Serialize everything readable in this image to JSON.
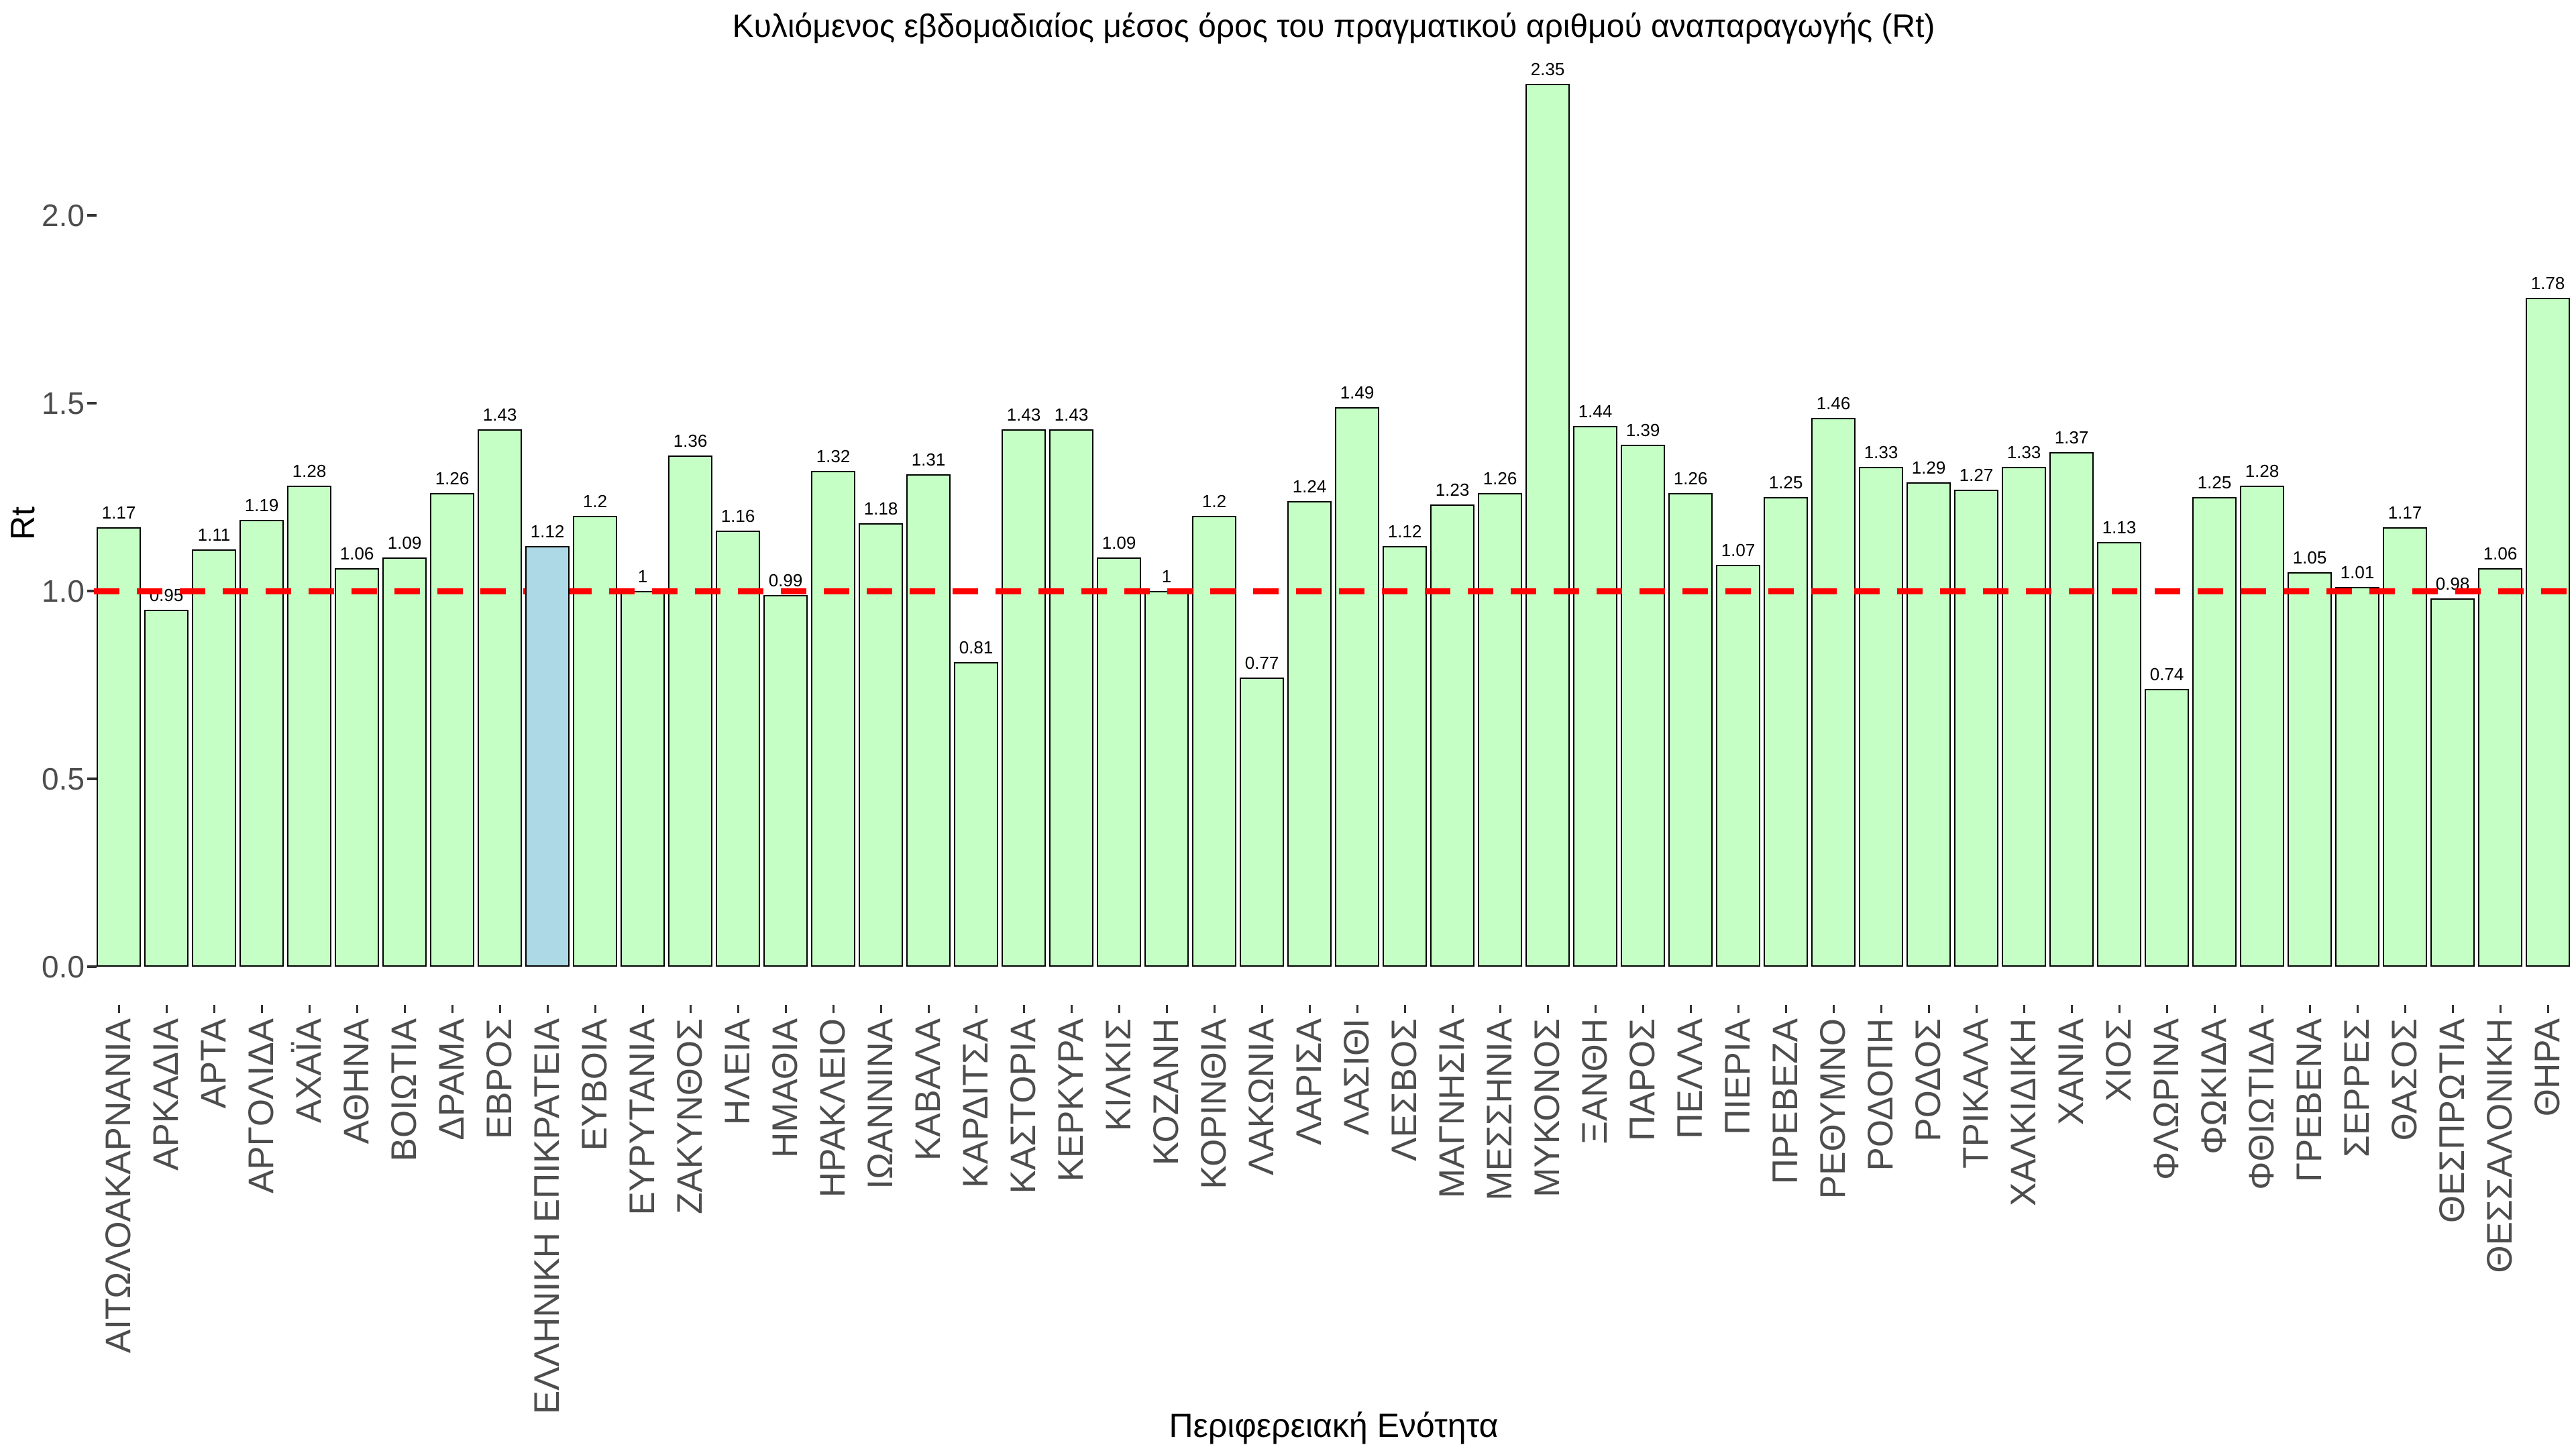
{
  "chart_data": {
    "type": "bar",
    "title": "Κυλιόμενος εβδομαδιαίος μέσος όρος του πραγματικού αριθμού αναπαραγωγής (Rt)",
    "xlabel": "Περιφερειακή Ενότητα",
    "ylabel": "Rt",
    "ylim": [
      0,
      2.4
    ],
    "yticks": [
      0.0,
      0.5,
      1.0,
      1.5,
      2.0
    ],
    "ytick_labels": [
      "0.0",
      "0.5",
      "1.0",
      "1.5",
      "2.0"
    ],
    "grid": false,
    "legend": false,
    "reference_line": {
      "value": 1.0,
      "color": "#FF0000",
      "style": "dashed"
    },
    "bar_style": {
      "fill": "#C6FFC6",
      "stroke": "#000000"
    },
    "highlight": {
      "category": "ΕΛΛΗΝΙΚΗ ΕΠΙΚΡΑΤΕΙΑ",
      "fill": "#ADD8E6"
    },
    "categories": [
      "ΑΙΤΩΛΟΑΚΑΡΝΑΝΙΑ",
      "ΑΡΚΑΔΙΑ",
      "ΑΡΤΑ",
      "ΑΡΓΟΛΙΔΑ",
      "ΑΧΑΪΑ",
      "ΑΘΗΝΑ",
      "ΒΟΙΩΤΙΑ",
      "ΔΡΑΜΑ",
      "ΕΒΡΟΣ",
      "ΕΛΛΗΝΙΚΗ ΕΠΙΚΡΑΤΕΙΑ",
      "ΕΥΒΟΙΑ",
      "ΕΥΡΥΤΑΝΙΑ",
      "ΖΑΚΥΝΘΟΣ",
      "ΗΛΕΙΑ",
      "ΗΜΑΘΙΑ",
      "ΗΡΑΚΛΕΙΟ",
      "ΙΩΑΝΝΙΝΑ",
      "ΚΑΒΑΛΑ",
      "ΚΑΡΔΙΤΣΑ",
      "ΚΑΣΤΟΡΙΑ",
      "ΚΕΡΚΥΡΑ",
      "ΚΙΛΚΙΣ",
      "ΚΟΖΑΝΗ",
      "ΚΟΡΙΝΘΙΑ",
      "ΛΑΚΩΝΙΑ",
      "ΛΑΡΙΣΑ",
      "ΛΑΣΙΘΙ",
      "ΛΕΣΒΟΣ",
      "ΜΑΓΝΗΣΙΑ",
      "ΜΕΣΣΗΝΙΑ",
      "ΜΥΚΟΝΟΣ",
      "ΞΑΝΘΗ",
      "ΠΑΡΟΣ",
      "ΠΕΛΛΑ",
      "ΠΙΕΡΙΑ",
      "ΠΡΕΒΕΖΑ",
      "ΡΕΘΥΜΝΟ",
      "ΡΟΔΟΠΗ",
      "ΡΟΔΟΣ",
      "ΤΡΙΚΑΛΑ",
      "ΧΑΛΚΙΔΙΚΗ",
      "ΧΑΝΙΑ",
      "ΧΙΟΣ",
      "ΦΛΩΡΙΝΑ",
      "ΦΩΚΙΔΑ",
      "ΦΘΙΩΤΙΔΑ",
      "ΓΡΕΒΕΝΑ",
      "ΣΕΡΡΕΣ",
      "ΘΑΣΟΣ",
      "ΘΕΣΠΡΩΤΙΑ",
      "ΘΕΣΣΑΛΟΝΙΚΗ",
      "ΘΗΡΑ"
    ],
    "values": [
      1.17,
      0.95,
      1.11,
      1.19,
      1.28,
      1.06,
      1.09,
      1.26,
      1.43,
      1.12,
      1.2,
      1,
      1.36,
      1.16,
      0.99,
      1.32,
      1.18,
      1.31,
      0.81,
      1.43,
      1.43,
      1.09,
      1,
      1.2,
      0.77,
      1.24,
      1.49,
      1.12,
      1.23,
      1.26,
      2.35,
      1.44,
      1.39,
      1.26,
      1.07,
      1.25,
      1.46,
      1.33,
      1.29,
      1.27,
      1.33,
      1.37,
      1.13,
      0.74,
      1.25,
      1.28,
      1.05,
      1.01,
      1.17,
      0.98,
      1.06,
      1.78
    ],
    "value_labels": [
      "1.17",
      "0.95",
      "1.11",
      "1.19",
      "1.28",
      "1.06",
      "1.09",
      "1.26",
      "1.43",
      "1.12",
      "1.2",
      "1",
      "1.36",
      "1.16",
      "0.99",
      "1.32",
      "1.18",
      "1.31",
      "0.81",
      "1.43",
      "1.43",
      "1.09",
      "1",
      "1.2",
      "0.77",
      "1.24",
      "1.49",
      "1.12",
      "1.23",
      "1.26",
      "2.35",
      "1.44",
      "1.39",
      "1.26",
      "1.07",
      "1.25",
      "1.46",
      "1.33",
      "1.29",
      "1.27",
      "1.33",
      "1.37",
      "1.13",
      "0.74",
      "1.25",
      "1.28",
      "1.05",
      "1.01",
      "1.17",
      "0.98",
      "1.06",
      "1.78"
    ]
  }
}
